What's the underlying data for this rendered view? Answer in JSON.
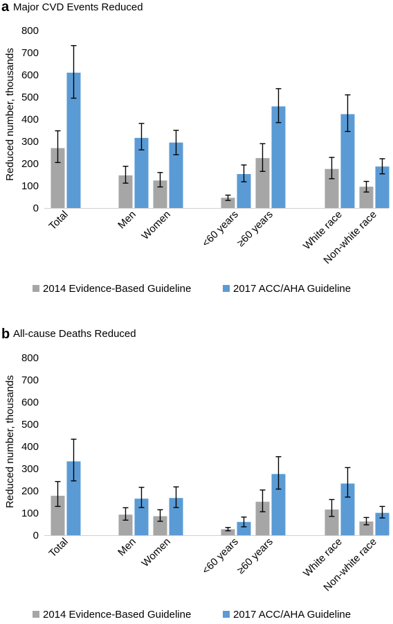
{
  "colors": {
    "series_2014": "#a6a6a6",
    "series_2017": "#5b9bd5"
  },
  "legend": {
    "label_2014": "2014 Evidence-Based Guideline",
    "label_2017": "2017 ACC/AHA Guideline"
  },
  "chart_data": [
    {
      "type": "bar",
      "panel": "a",
      "title": "Major CVD Events Reduced",
      "ylabel": "Reduced number, thousands",
      "xlabel": "",
      "ylim": [
        0,
        800
      ],
      "yticks": [
        "0",
        "100",
        "200",
        "300",
        "400",
        "500",
        "600",
        "700",
        "800"
      ],
      "grid": false,
      "legend_position": "bottom",
      "groups": [
        {
          "label": "Total",
          "values": [
            270,
            610
          ],
          "err_low": [
            205,
            495
          ],
          "err_high": [
            348,
            732
          ]
        },
        {
          "label": "Men",
          "values": [
            147,
            316
          ],
          "err_low": [
            112,
            262
          ],
          "err_high": [
            188,
            381
          ]
        },
        {
          "label": "Women",
          "values": [
            124,
            295
          ],
          "err_low": [
            95,
            240
          ],
          "err_high": [
            160,
            350
          ]
        },
        {
          "label": "<60 years",
          "values": [
            46,
            153
          ],
          "err_low": [
            34,
            118
          ],
          "err_high": [
            58,
            194
          ]
        },
        {
          "label": "≥60 years",
          "values": [
            225,
            458
          ],
          "err_low": [
            165,
            385
          ],
          "err_high": [
            290,
            538
          ]
        },
        {
          "label": "White race",
          "values": [
            176,
            423
          ],
          "err_low": [
            132,
            345
          ],
          "err_high": [
            228,
            510
          ]
        },
        {
          "label": "Non-white race",
          "values": [
            96,
            187
          ],
          "err_low": [
            72,
            154
          ],
          "err_high": [
            120,
            222
          ]
        }
      ],
      "series": [
        {
          "name": "2014 Evidence-Based Guideline",
          "index": 0
        },
        {
          "name": "2017 ACC/AHA Guideline",
          "index": 1
        }
      ]
    },
    {
      "type": "bar",
      "panel": "b",
      "title": "All-cause Deaths Reduced",
      "ylabel": "Reduced number, thousands",
      "xlabel": "",
      "ylim": [
        0,
        800
      ],
      "yticks": [
        "0",
        "100",
        "200",
        "300",
        "400",
        "500",
        "600",
        "700",
        "800"
      ],
      "grid": false,
      "legend_position": "bottom",
      "groups": [
        {
          "label": "Total",
          "values": [
            178,
            333
          ],
          "err_low": [
            130,
            245
          ],
          "err_high": [
            242,
            433
          ]
        },
        {
          "label": "Men",
          "values": [
            93,
            165
          ],
          "err_low": [
            68,
            125
          ],
          "err_high": [
            124,
            216
          ]
        },
        {
          "label": "Women",
          "values": [
            86,
            168
          ],
          "err_low": [
            63,
            125
          ],
          "err_high": [
            115,
            218
          ]
        },
        {
          "label": "<60 years",
          "values": [
            27,
            60
          ],
          "err_low": [
            20,
            38
          ],
          "err_high": [
            35,
            82
          ]
        },
        {
          "label": "≥60 years",
          "values": [
            151,
            276
          ],
          "err_low": [
            106,
            208
          ],
          "err_high": [
            204,
            354
          ]
        },
        {
          "label": "White race",
          "values": [
            116,
            233
          ],
          "err_low": [
            85,
            172
          ],
          "err_high": [
            161,
            305
          ]
        },
        {
          "label": "Non-white race",
          "values": [
            62,
            101
          ],
          "err_low": [
            47,
            78
          ],
          "err_high": [
            80,
            130
          ]
        }
      ],
      "series": [
        {
          "name": "2014 Evidence-Based Guideline",
          "index": 0
        },
        {
          "name": "2017 ACC/AHA Guideline",
          "index": 1
        }
      ]
    }
  ]
}
